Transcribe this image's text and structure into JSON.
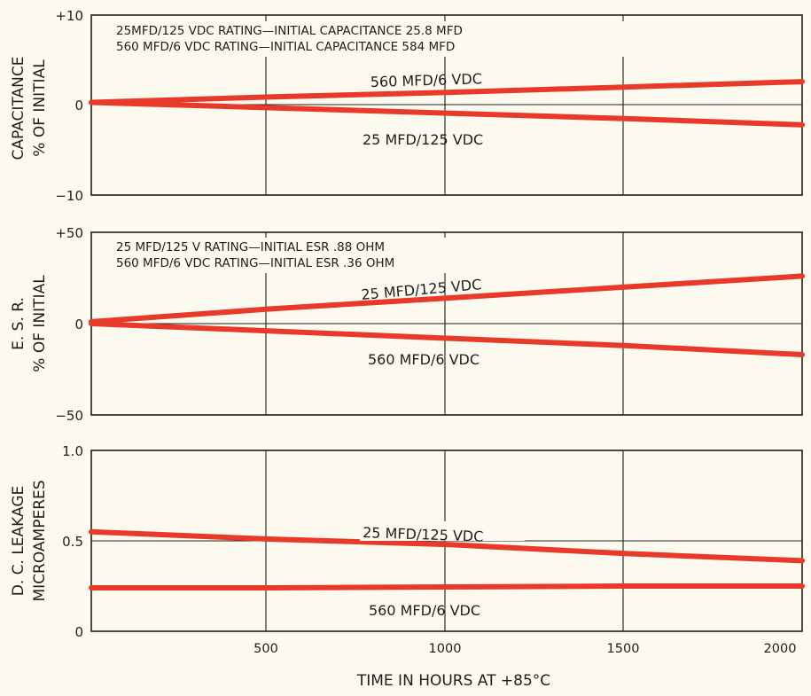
{
  "chart_data": [
    {
      "type": "line",
      "ylabel": [
        "CAPACITANCE",
        "% OF INITIAL"
      ],
      "ylim": [
        -10,
        10
      ],
      "yticks": [
        "+10",
        "0",
        "−10"
      ],
      "xlim": [
        0,
        2000
      ],
      "grid": true,
      "annotations": [
        "25MFD/125 VDC RATING—INITIAL CAPACITANCE 25.8 MFD",
        "560 MFD/6 VDC RATING—INITIAL CAPACITANCE 584 MFD"
      ],
      "series": [
        {
          "name": "560 MFD/6 VDC",
          "x": [
            0,
            500,
            1000,
            1500,
            2000
          ],
          "y": [
            0.3,
            0.9,
            1.4,
            2.0,
            2.6
          ]
        },
        {
          "name": "25 MFD/125 VDC",
          "x": [
            0,
            500,
            1000,
            1500,
            2000
          ],
          "y": [
            0.3,
            -0.3,
            -0.9,
            -1.5,
            -2.2
          ]
        }
      ]
    },
    {
      "type": "line",
      "ylabel": [
        "E. S. R.",
        "% OF INITIAL"
      ],
      "ylim": [
        -50,
        50
      ],
      "yticks": [
        "+50",
        "0",
        "−50"
      ],
      "xlim": [
        0,
        2000
      ],
      "grid": true,
      "annotations": [
        "25 MFD/125 V RATING—INITIAL ESR .88 OHM",
        "560 MFD/6 VDC RATING—INITIAL ESR .36 OHM"
      ],
      "series": [
        {
          "name": "25 MFD/125 VDC",
          "x": [
            0,
            500,
            1000,
            1500,
            2000
          ],
          "y": [
            1,
            8,
            14,
            20,
            26
          ]
        },
        {
          "name": "560 MFD/6 VDC",
          "x": [
            0,
            500,
            1000,
            1500,
            2000
          ],
          "y": [
            0,
            -4,
            -8,
            -12,
            -17
          ]
        }
      ]
    },
    {
      "type": "line",
      "ylabel": [
        "D. C. LEAKAGE",
        "MICROAMPERES"
      ],
      "ylim": [
        0,
        1.0
      ],
      "yticks": [
        "1.0",
        "0.5",
        "0"
      ],
      "xlim": [
        0,
        2000
      ],
      "xticks": [
        "500",
        "1000",
        "1500",
        "2000"
      ],
      "xlabel": "TIME IN HOURS AT +85°C",
      "grid": true,
      "series": [
        {
          "name": "25 MFD/125 VDC",
          "x": [
            0,
            500,
            1000,
            1500,
            2000
          ],
          "y": [
            0.55,
            0.51,
            0.48,
            0.43,
            0.39
          ]
        },
        {
          "name": "560 MFD/6 VDC",
          "x": [
            0,
            500,
            1000,
            1500,
            2000
          ],
          "y": [
            0.24,
            0.24,
            0.245,
            0.25,
            0.25
          ]
        }
      ]
    }
  ]
}
